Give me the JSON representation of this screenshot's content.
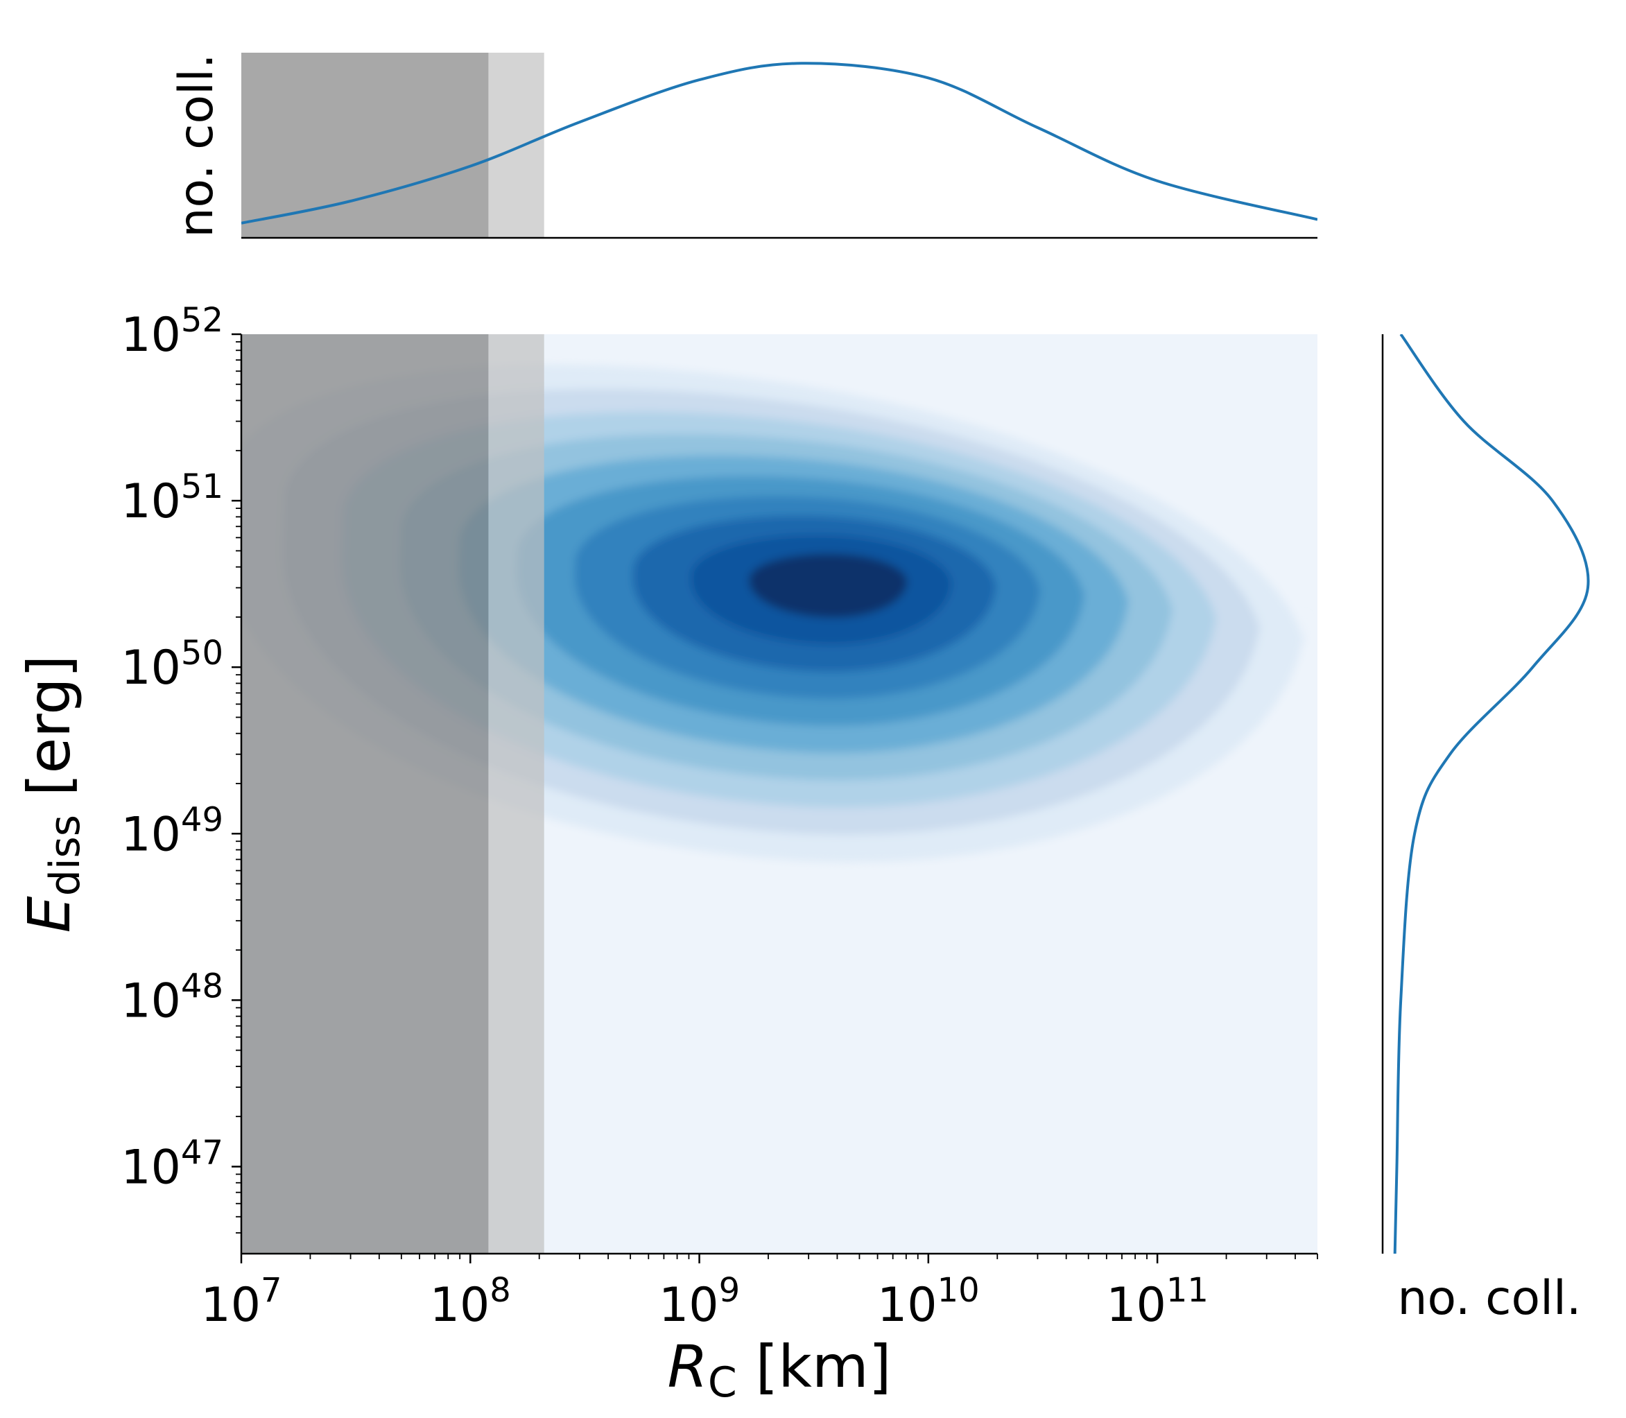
{
  "chart_data": {
    "type": "contour",
    "title": "",
    "xlabel": {
      "symbol": "R",
      "subscript": "C",
      "unit": "[km]"
    },
    "ylabel": {
      "symbol": "E",
      "subscript": "diss",
      "unit": "[erg]"
    },
    "xscale": "log",
    "yscale": "log",
    "xlim": [
      10000000.0,
      500000000000.0
    ],
    "ylim": [
      3e+46,
      1e+52
    ],
    "x_tick_exponents": [
      7,
      8,
      9,
      10,
      11
    ],
    "y_tick_exponents": [
      47,
      48,
      49,
      50,
      51,
      52
    ],
    "tick_base": "10",
    "shaded_regions": [
      {
        "x": [
          10000000.0,
          120000000.0
        ],
        "color": "#7f7f7f"
      },
      {
        "x": [
          120000000.0,
          210000000.0
        ],
        "color": "#c0c0c0"
      }
    ],
    "density_peak": {
      "x": 2800000000.0,
      "y": 3.3e+50
    },
    "contour_levels": 10,
    "colormap": "Blues",
    "marginal_x": {
      "ylabel": "no. coll.",
      "x": [
        10000000.0,
        30000000.0,
        100000000.0,
        300000000.0,
        1000000000.0,
        2800000000.0,
        10000000000.0,
        30000000000.0,
        100000000000.0,
        500000000000.0
      ],
      "density": [
        0.08,
        0.2,
        0.39,
        0.63,
        0.86,
        0.95,
        0.87,
        0.6,
        0.31,
        0.1
      ]
    },
    "marginal_y": {
      "xlabel": "no. coll.",
      "y": [
        3e+46,
        1e+47,
        1e+48,
        1e+49,
        3e+49,
        1e+50,
        3e+50,
        1e+51,
        3e+51,
        1e+52
      ],
      "density": [
        0.02,
        0.03,
        0.05,
        0.12,
        0.3,
        0.72,
        1.0,
        0.82,
        0.37,
        0.05
      ]
    },
    "line_color": "#1f77b4"
  }
}
